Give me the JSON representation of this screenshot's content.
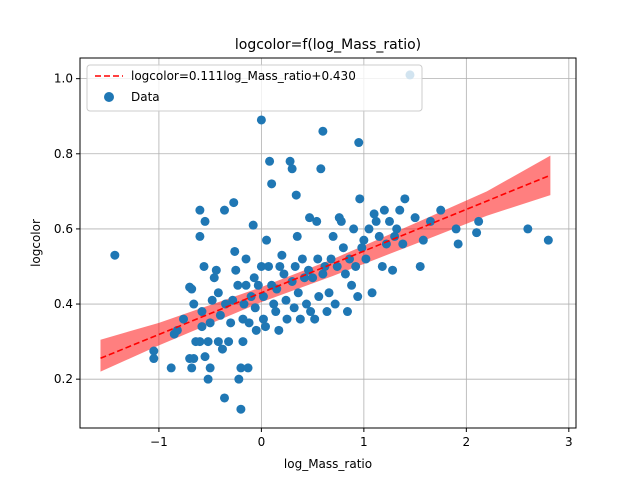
{
  "chart_data": {
    "type": "scatter",
    "title": "logcolor=f(log_Mass_ratio)",
    "xlabel": "log_Mass_ratio",
    "ylabel": "logcolor",
    "xlim": [
      -1.77,
      3.07
    ],
    "ylim": [
      0.07,
      1.055
    ],
    "xticks": [
      -1,
      0,
      1,
      2,
      3
    ],
    "xtick_labels": [
      "−1",
      "0",
      "1",
      "2",
      "3"
    ],
    "yticks": [
      0.2,
      0.4,
      0.6,
      0.8,
      1.0
    ],
    "ytick_labels": [
      "0.2",
      "0.4",
      "0.6",
      "0.8",
      "1.0"
    ],
    "grid": true,
    "legend_position": "top-left",
    "legend": [
      "logcolor=0.111log_Mass_ratio+0.430",
      "Data"
    ],
    "colors": {
      "data": "#1f77b4",
      "fit": "#ff0000",
      "band": "#ff0000",
      "grid": "#b0b0b0"
    },
    "fit": {
      "slope": 0.111,
      "intercept": 0.43,
      "x_range": [
        -1.57,
        2.82
      ]
    },
    "band": {
      "x": [
        -1.57,
        -1.0,
        0.0,
        0.7,
        1.5,
        2.2,
        2.82
      ],
      "lower": [
        0.22,
        0.29,
        0.405,
        0.475,
        0.56,
        0.635,
        0.69
      ],
      "upper": [
        0.305,
        0.35,
        0.445,
        0.52,
        0.615,
        0.7,
        0.795
      ]
    },
    "series": [
      {
        "name": "Data",
        "points": [
          [
            -1.43,
            0.53
          ],
          [
            -1.05,
            0.275
          ],
          [
            -1.05,
            0.255
          ],
          [
            -0.88,
            0.23
          ],
          [
            -0.85,
            0.32
          ],
          [
            -0.82,
            0.33
          ],
          [
            -0.76,
            0.36
          ],
          [
            -0.7,
            0.445
          ],
          [
            -0.68,
            0.44
          ],
          [
            -0.66,
            0.4
          ],
          [
            -0.7,
            0.255
          ],
          [
            -0.66,
            0.255
          ],
          [
            -0.68,
            0.23
          ],
          [
            -0.64,
            0.3
          ],
          [
            -0.6,
            0.3
          ],
          [
            -0.6,
            0.58
          ],
          [
            -0.6,
            0.65
          ],
          [
            -0.55,
            0.62
          ],
          [
            -0.56,
            0.5
          ],
          [
            -0.58,
            0.38
          ],
          [
            -0.58,
            0.34
          ],
          [
            -0.55,
            0.26
          ],
          [
            -0.52,
            0.2
          ],
          [
            -0.5,
            0.23
          ],
          [
            -0.52,
            0.3
          ],
          [
            -0.5,
            0.35
          ],
          [
            -0.48,
            0.41
          ],
          [
            -0.46,
            0.47
          ],
          [
            -0.44,
            0.49
          ],
          [
            -0.42,
            0.43
          ],
          [
            -0.4,
            0.37
          ],
          [
            -0.42,
            0.3
          ],
          [
            -0.38,
            0.28
          ],
          [
            -0.36,
            0.15
          ],
          [
            -0.36,
            0.65
          ],
          [
            -0.35,
            0.4
          ],
          [
            -0.32,
            0.3
          ],
          [
            -0.3,
            0.35
          ],
          [
            -0.28,
            0.41
          ],
          [
            -0.27,
            0.67
          ],
          [
            -0.26,
            0.54
          ],
          [
            -0.25,
            0.49
          ],
          [
            -0.23,
            0.45
          ],
          [
            -0.22,
            0.2
          ],
          [
            -0.2,
            0.12
          ],
          [
            -0.2,
            0.23
          ],
          [
            -0.18,
            0.3
          ],
          [
            -0.18,
            0.36
          ],
          [
            -0.17,
            0.4
          ],
          [
            -0.15,
            0.45
          ],
          [
            -0.15,
            0.52
          ],
          [
            -0.13,
            0.23
          ],
          [
            -0.12,
            0.35
          ],
          [
            -0.1,
            0.42
          ],
          [
            -0.08,
            0.61
          ],
          [
            -0.07,
            0.47
          ],
          [
            -0.06,
            0.39
          ],
          [
            -0.05,
            0.33
          ],
          [
            -0.03,
            0.45
          ],
          [
            0.0,
            0.89
          ],
          [
            0.0,
            0.5
          ],
          [
            0.02,
            0.42
          ],
          [
            0.02,
            0.36
          ],
          [
            0.04,
            0.34
          ],
          [
            0.05,
            0.57
          ],
          [
            0.07,
            0.5
          ],
          [
            0.08,
            0.78
          ],
          [
            0.1,
            0.72
          ],
          [
            0.1,
            0.45
          ],
          [
            0.12,
            0.4
          ],
          [
            0.14,
            0.38
          ],
          [
            0.15,
            0.44
          ],
          [
            0.17,
            0.33
          ],
          [
            0.18,
            0.5
          ],
          [
            0.2,
            0.53
          ],
          [
            0.22,
            0.48
          ],
          [
            0.24,
            0.41
          ],
          [
            0.25,
            0.36
          ],
          [
            0.28,
            0.78
          ],
          [
            0.3,
            0.76
          ],
          [
            0.3,
            0.46
          ],
          [
            0.32,
            0.39
          ],
          [
            0.33,
            0.5
          ],
          [
            0.34,
            0.69
          ],
          [
            0.35,
            0.58
          ],
          [
            0.36,
            0.43
          ],
          [
            0.38,
            0.36
          ],
          [
            0.4,
            0.52
          ],
          [
            0.42,
            0.47
          ],
          [
            0.44,
            0.4
          ],
          [
            0.46,
            0.49
          ],
          [
            0.47,
            0.63
          ],
          [
            0.48,
            0.38
          ],
          [
            0.5,
            0.47
          ],
          [
            0.52,
            0.36
          ],
          [
            0.54,
            0.62
          ],
          [
            0.55,
            0.52
          ],
          [
            0.56,
            0.42
          ],
          [
            0.58,
            0.76
          ],
          [
            0.6,
            0.86
          ],
          [
            0.6,
            0.48
          ],
          [
            0.62,
            0.5
          ],
          [
            0.64,
            0.38
          ],
          [
            0.66,
            0.43
          ],
          [
            0.68,
            0.52
          ],
          [
            0.7,
            0.58
          ],
          [
            0.72,
            0.4
          ],
          [
            0.74,
            0.5
          ],
          [
            0.76,
            0.63
          ],
          [
            0.78,
            0.62
          ],
          [
            0.8,
            0.55
          ],
          [
            0.82,
            0.48
          ],
          [
            0.84,
            0.38
          ],
          [
            0.86,
            0.52
          ],
          [
            0.88,
            0.45
          ],
          [
            0.9,
            0.6
          ],
          [
            0.92,
            0.5
          ],
          [
            0.94,
            0.42
          ],
          [
            0.95,
            0.83
          ],
          [
            0.96,
            0.68
          ],
          [
            0.98,
            0.55
          ],
          [
            1.0,
            0.57
          ],
          [
            1.02,
            0.52
          ],
          [
            1.05,
            0.6
          ],
          [
            1.08,
            0.43
          ],
          [
            1.1,
            0.64
          ],
          [
            1.12,
            0.62
          ],
          [
            1.15,
            0.58
          ],
          [
            1.18,
            0.5
          ],
          [
            1.2,
            0.65
          ],
          [
            1.22,
            0.56
          ],
          [
            1.25,
            0.62
          ],
          [
            1.28,
            0.49
          ],
          [
            1.3,
            0.58
          ],
          [
            1.32,
            0.6
          ],
          [
            1.35,
            0.65
          ],
          [
            1.38,
            0.56
          ],
          [
            1.4,
            0.68
          ],
          [
            1.45,
            1.01
          ],
          [
            1.5,
            0.63
          ],
          [
            1.55,
            0.5
          ],
          [
            1.58,
            0.57
          ],
          [
            1.65,
            0.62
          ],
          [
            1.75,
            0.65
          ],
          [
            1.9,
            0.6
          ],
          [
            1.92,
            0.56
          ],
          [
            2.1,
            0.59
          ],
          [
            2.12,
            0.62
          ],
          [
            2.6,
            0.6
          ],
          [
            2.8,
            0.57
          ]
        ]
      }
    ]
  }
}
